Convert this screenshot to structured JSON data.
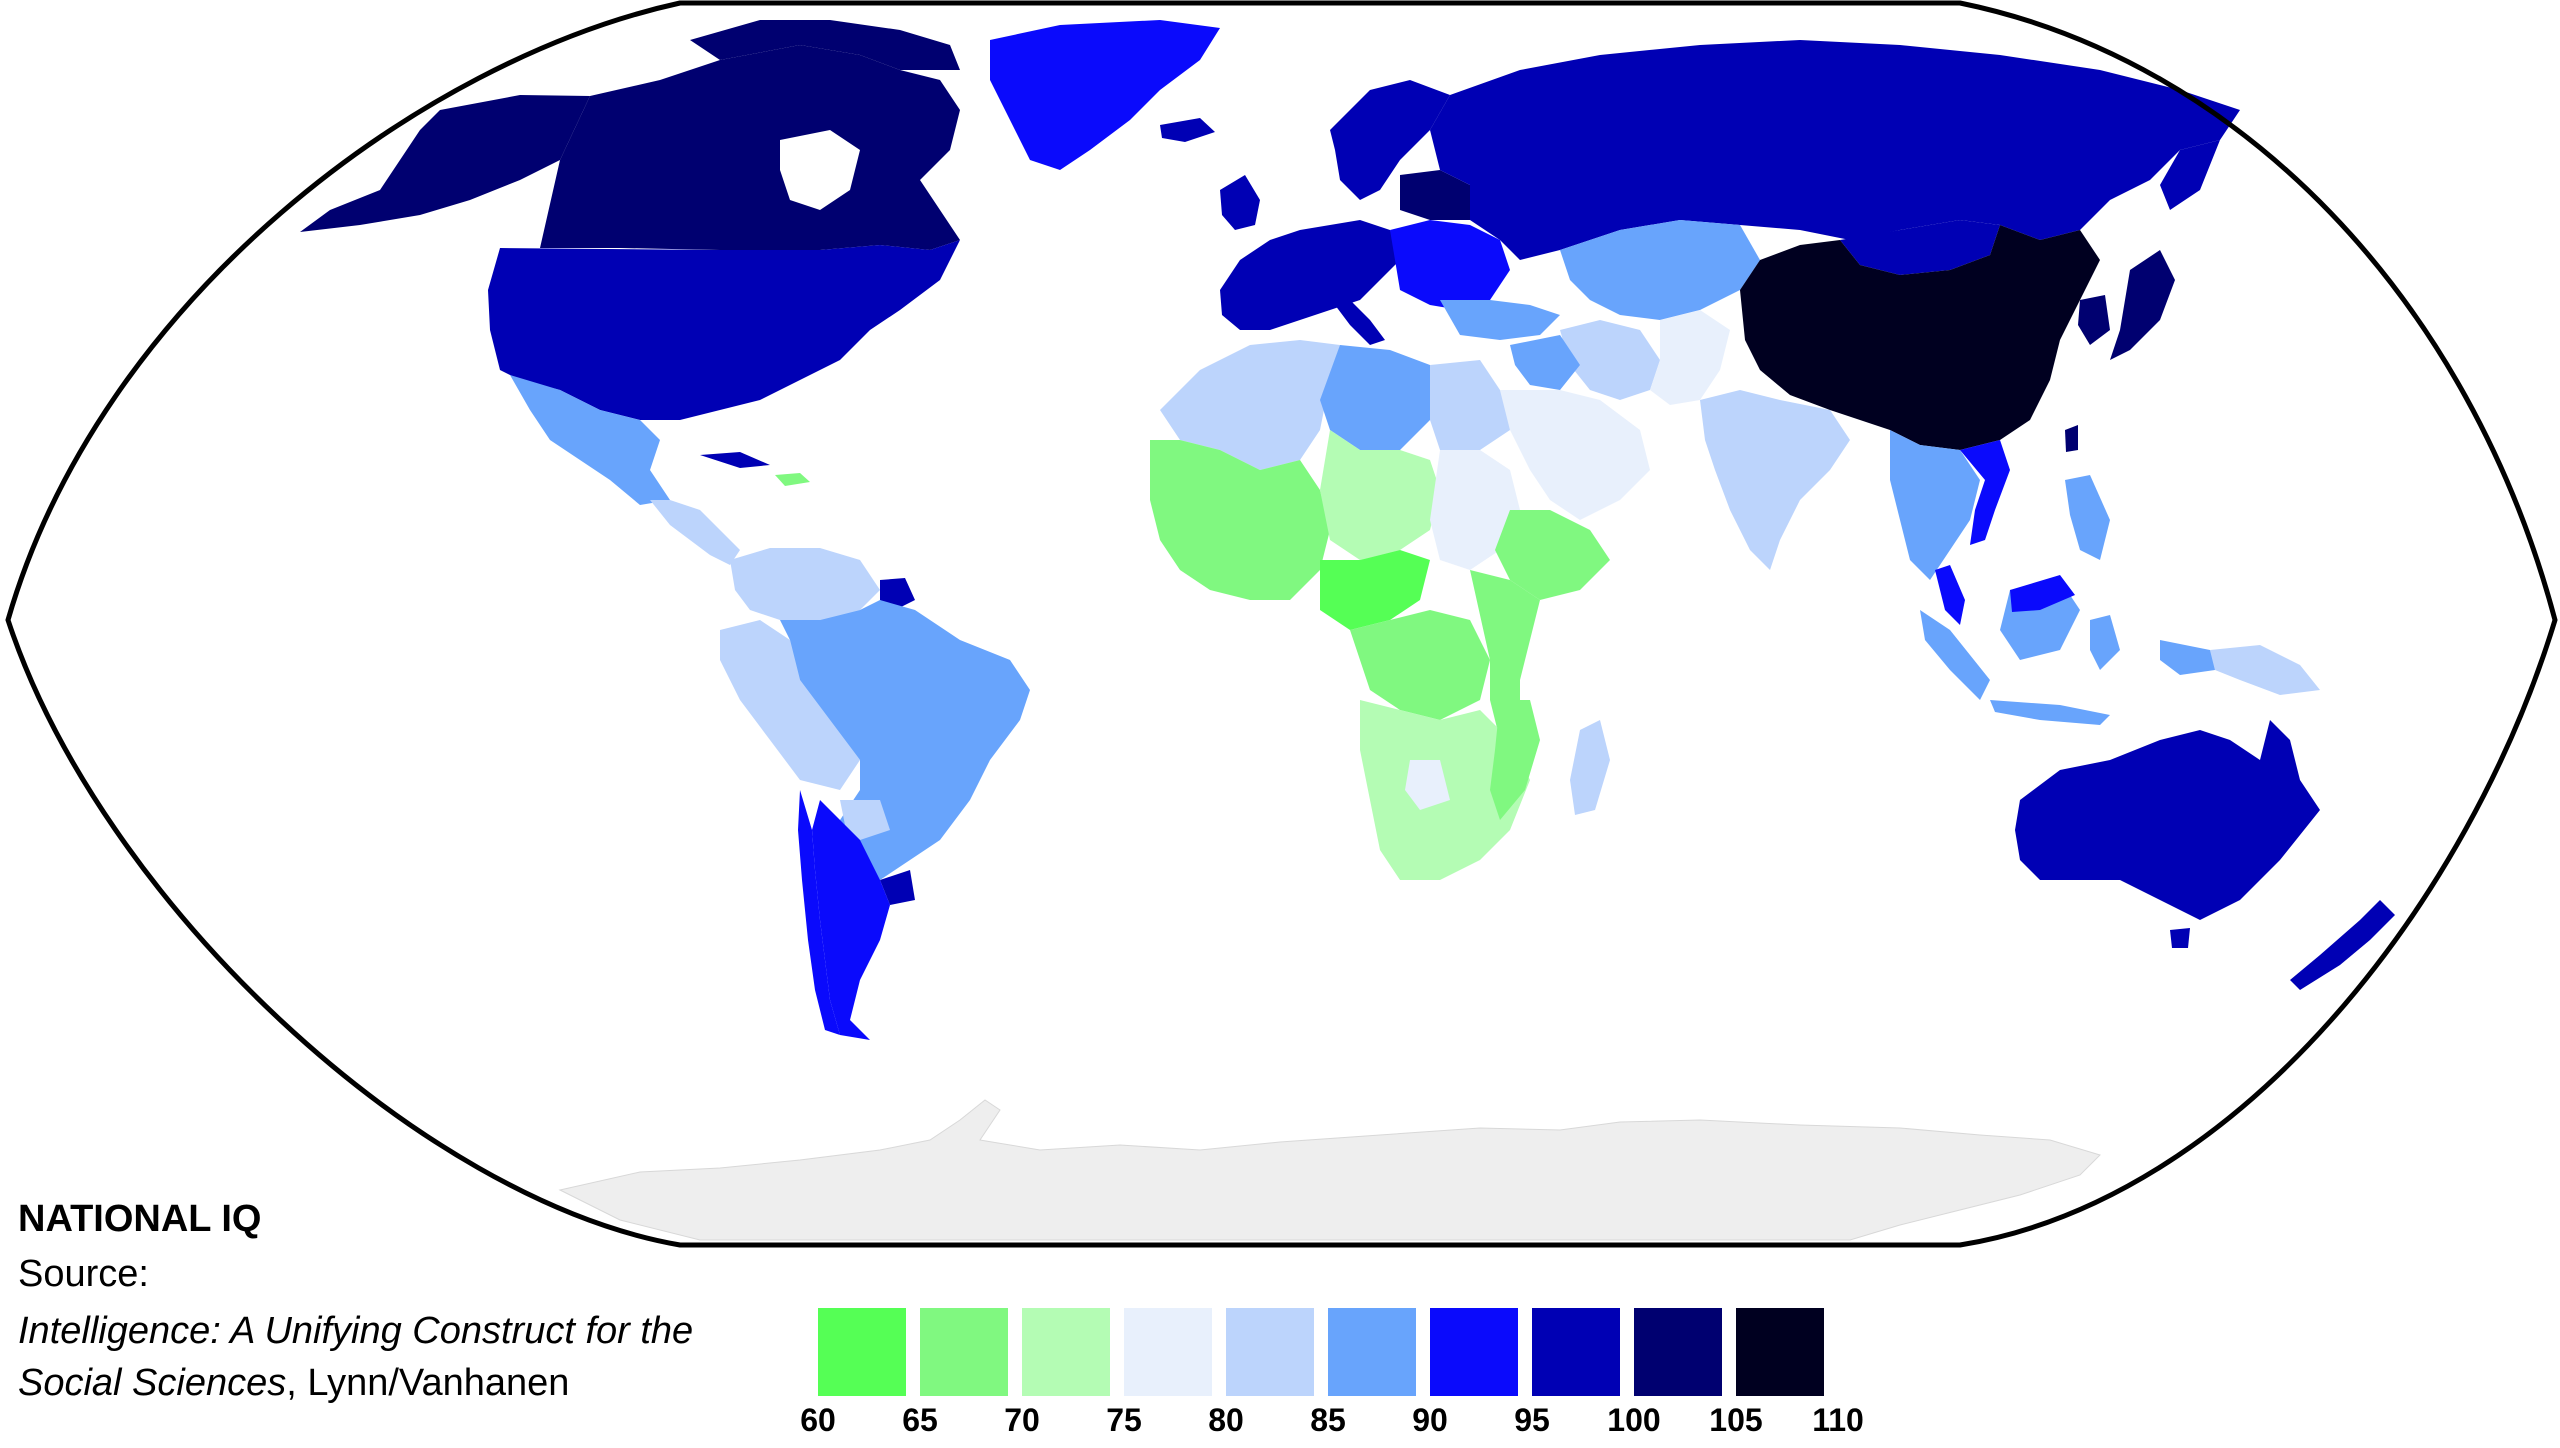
{
  "legend": {
    "title": "NATIONAL IQ",
    "source_label": "Source:",
    "book_title_part1": "Intelligence: A Unifying Construct for the",
    "book_title_part2": "Social Sciences",
    "authors": ", Lynn/Vanhanen"
  },
  "scale": {
    "ticks": [
      "60",
      "65",
      "70",
      "75",
      "80",
      "85",
      "90",
      "95",
      "100",
      "105",
      "110"
    ],
    "bins": [
      {
        "range": "60-65",
        "color": "#55ff55"
      },
      {
        "range": "65-70",
        "color": "#80f880"
      },
      {
        "range": "70-75",
        "color": "#b4fcb4"
      },
      {
        "range": "75-80",
        "color": "#e8f0fc"
      },
      {
        "range": "80-85",
        "color": "#bcd4fc"
      },
      {
        "range": "85-90",
        "color": "#68a4fc"
      },
      {
        "range": "90-95",
        "color": "#0a0afc"
      },
      {
        "range": "95-100",
        "color": "#0000b4"
      },
      {
        "range": "100-105",
        "color": "#000070"
      },
      {
        "range": "105-110",
        "color": "#000020"
      }
    ]
  },
  "map": {
    "projection": "Robinson",
    "no_data_color": "#ffffff",
    "antarctica_color": "#eeeeee",
    "regions": [
      {
        "region": "Alaska",
        "bin": "100-105"
      },
      {
        "region": "Canada",
        "bin": "100-105"
      },
      {
        "region": "Greenland",
        "bin": "90-95"
      },
      {
        "region": "United States",
        "bin": "95-100"
      },
      {
        "region": "Mexico",
        "bin": "85-90"
      },
      {
        "region": "Central America",
        "bin": "80-85"
      },
      {
        "region": "Colombia / Venezuela",
        "bin": "80-85"
      },
      {
        "region": "Peru / Bolivia",
        "bin": "80-85"
      },
      {
        "region": "Brazil",
        "bin": "85-90"
      },
      {
        "region": "Argentina",
        "bin": "90-95"
      },
      {
        "region": "Chile",
        "bin": "90-95"
      },
      {
        "region": "Uruguay",
        "bin": "95-100"
      },
      {
        "region": "Western Europe",
        "bin": "95-100"
      },
      {
        "region": "Scandinavia",
        "bin": "95-100"
      },
      {
        "region": "Eastern Europe",
        "bin": "90-95"
      },
      {
        "region": "Russia",
        "bin": "95-100"
      },
      {
        "region": "Turkey",
        "bin": "85-90"
      },
      {
        "region": "Central Asia",
        "bin": "85-90"
      },
      {
        "region": "Iran",
        "bin": "80-85"
      },
      {
        "region": "Arabian Peninsula",
        "bin": "75-80"
      },
      {
        "region": "North Africa (west)",
        "bin": "80-85"
      },
      {
        "region": "Libya",
        "bin": "85-90"
      },
      {
        "region": "Egypt",
        "bin": "80-85"
      },
      {
        "region": "Sudan",
        "bin": "75-80"
      },
      {
        "region": "West Africa",
        "bin": "65-70"
      },
      {
        "region": "Sahel",
        "bin": "70-75"
      },
      {
        "region": "Central Africa",
        "bin": "60-65"
      },
      {
        "region": "Ethiopia",
        "bin": "65-70"
      },
      {
        "region": "East Africa",
        "bin": "65-70"
      },
      {
        "region": "Southern Africa",
        "bin": "70-75"
      },
      {
        "region": "Madagascar",
        "bin": "80-85"
      },
      {
        "region": "India",
        "bin": "80-85"
      },
      {
        "region": "China",
        "bin": "105-110"
      },
      {
        "region": "Mongolia",
        "bin": "95-100"
      },
      {
        "region": "Japan",
        "bin": "100-105"
      },
      {
        "region": "Korea",
        "bin": "100-105"
      },
      {
        "region": "Southeast Asia",
        "bin": "85-90"
      },
      {
        "region": "Vietnam",
        "bin": "90-95"
      },
      {
        "region": "Malaysia / Borneo",
        "bin": "90-95"
      },
      {
        "region": "Indonesia",
        "bin": "85-90"
      },
      {
        "region": "Philippines",
        "bin": "85-90"
      },
      {
        "region": "Papua New Guinea",
        "bin": "80-85"
      },
      {
        "region": "Australia",
        "bin": "95-100"
      },
      {
        "region": "New Zealand",
        "bin": "95-100"
      }
    ]
  }
}
